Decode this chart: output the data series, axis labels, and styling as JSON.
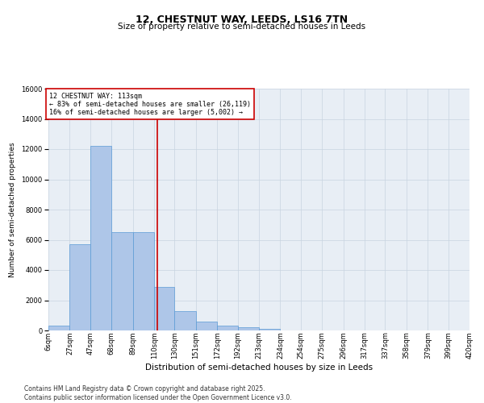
{
  "title": "12, CHESTNUT WAY, LEEDS, LS16 7TN",
  "subtitle": "Size of property relative to semi-detached houses in Leeds",
  "xlabel": "Distribution of semi-detached houses by size in Leeds",
  "ylabel": "Number of semi-detached properties",
  "footnote": "Contains HM Land Registry data © Crown copyright and database right 2025.\nContains public sector information licensed under the Open Government Licence v3.0.",
  "annotation_title": "12 CHESTNUT WAY: 113sqm",
  "annotation_line1": "← 83% of semi-detached houses are smaller (26,119)",
  "annotation_line2": "16% of semi-detached houses are larger (5,002) →",
  "property_size": 113,
  "bar_edges": [
    6,
    27,
    47,
    68,
    89,
    110,
    130,
    151,
    172,
    192,
    213,
    234,
    254,
    275,
    296,
    317,
    337,
    358,
    379,
    399,
    420
  ],
  "bar_heights": [
    300,
    5700,
    12200,
    6500,
    6500,
    2900,
    1300,
    600,
    300,
    200,
    100,
    0,
    0,
    0,
    0,
    0,
    0,
    0,
    0,
    0
  ],
  "bar_color": "#aec6e8",
  "bar_edgecolor": "#5a9ad5",
  "vline_color": "#cc0000",
  "vline_x": 113,
  "annotation_box_color": "#cc0000",
  "ylim": [
    0,
    16000
  ],
  "yticks": [
    0,
    2000,
    4000,
    6000,
    8000,
    10000,
    12000,
    14000,
    16000
  ],
  "grid_color": "#c8d4e0",
  "bg_color": "#e8eef5",
  "title_fontsize": 9,
  "subtitle_fontsize": 7.5,
  "ylabel_fontsize": 6.5,
  "xlabel_fontsize": 7.5,
  "tick_fontsize": 6,
  "annotation_fontsize": 6,
  "footnote_fontsize": 5.5
}
